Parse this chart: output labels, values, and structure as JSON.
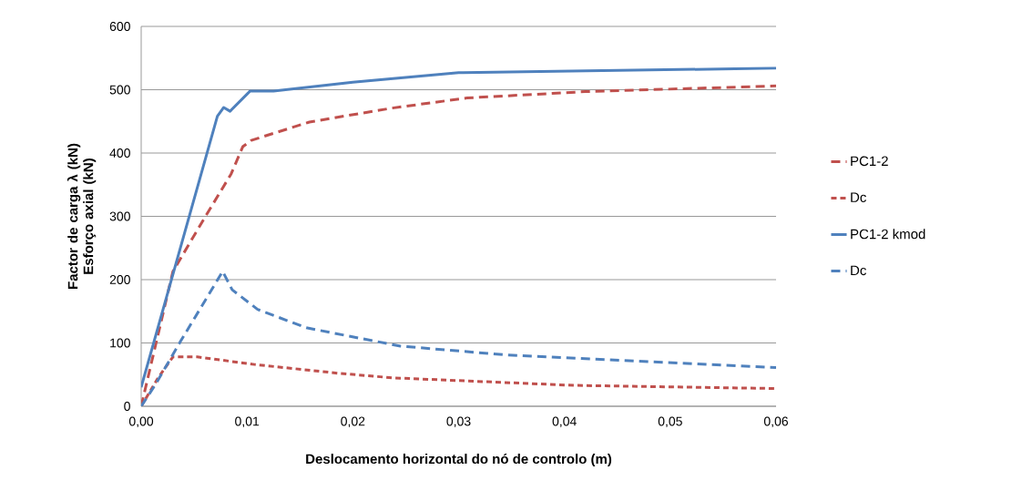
{
  "chart_data": {
    "type": "line",
    "xlabel": "Deslocamento horizontal do nó de controlo (m)",
    "ylabel": "Factor de carga λ (kN) Esforço axial (kN)",
    "xlim": [
      0,
      0.06
    ],
    "ylim": [
      0,
      600
    ],
    "xticks": [
      {
        "value": 0,
        "label": "0,00"
      },
      {
        "value": 0.01,
        "label": "0,01"
      },
      {
        "value": 0.02,
        "label": "0,02"
      },
      {
        "value": 0.03,
        "label": "0,03"
      },
      {
        "value": 0.04,
        "label": "0,04"
      },
      {
        "value": 0.05,
        "label": "0,05"
      },
      {
        "value": 0.06,
        "label": "0,06"
      }
    ],
    "yticks": [
      0,
      100,
      200,
      300,
      400,
      500,
      600
    ],
    "grid": "y",
    "legend": "right",
    "marker": "none",
    "series": [
      {
        "name": "PC1-2",
        "color": "#c0504d",
        "line_style": "dashed",
        "x": [
          0,
          0.003,
          0.0059,
          0.0085,
          0.0096,
          0.0104,
          0.0159,
          0.0237,
          0.0308,
          0.042,
          0.06
        ],
        "values": [
          0,
          213,
          295,
          367,
          410,
          420,
          449,
          471,
          487,
          497,
          506
        ]
      },
      {
        "name": "Dc",
        "color": "#c0504d",
        "line_style": "dotted",
        "x": [
          0,
          0.0016,
          0.003,
          0.0053,
          0.0107,
          0.0187,
          0.0237,
          0.0409,
          0.06
        ],
        "values": [
          0,
          45,
          78,
          78,
          66,
          52,
          45,
          33,
          28
        ]
      },
      {
        "name": "PC1-2 kmod",
        "color": "#4f81bd",
        "line_style": "solid",
        "x": [
          0,
          0.0072,
          0.0078,
          0.0084,
          0.0103,
          0.0125,
          0.0148,
          0.02,
          0.03,
          0.06
        ],
        "values": [
          30,
          458,
          472,
          466,
          498,
          498,
          502,
          512,
          527,
          534
        ]
      },
      {
        "name": "Dc",
        "color": "#4f81bd",
        "line_style": "dashed",
        "x": [
          0,
          0.0013,
          0.0037,
          0.0077,
          0.0086,
          0.011,
          0.0156,
          0.0245,
          0.0346,
          0.06
        ],
        "values": [
          0,
          33,
          102,
          213,
          184,
          153,
          124,
          95,
          81,
          61
        ]
      }
    ]
  }
}
